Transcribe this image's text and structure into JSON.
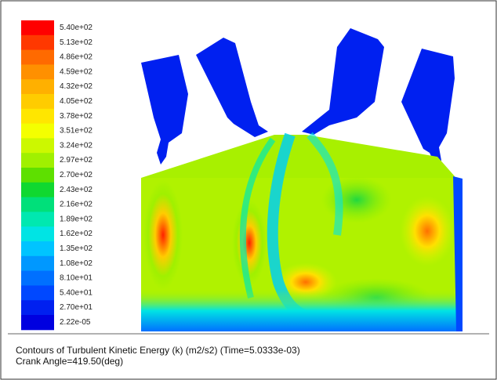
{
  "legend": {
    "levels": [
      {
        "label": "5.40e+02",
        "color": "#ff0000"
      },
      {
        "label": "5.13e+02",
        "color": "#ff3800"
      },
      {
        "label": "4.86e+02",
        "color": "#ff6a00"
      },
      {
        "label": "4.59e+02",
        "color": "#ff9000"
      },
      {
        "label": "4.32e+02",
        "color": "#ffb000"
      },
      {
        "label": "4.05e+02",
        "color": "#ffcc00"
      },
      {
        "label": "3.78e+02",
        "color": "#ffe600"
      },
      {
        "label": "3.51e+02",
        "color": "#f4ff00"
      },
      {
        "label": "3.24e+02",
        "color": "#ccf800"
      },
      {
        "label": "2.97e+02",
        "color": "#a0f000"
      },
      {
        "label": "2.70e+02",
        "color": "#5ee000"
      },
      {
        "label": "2.43e+02",
        "color": "#10d830"
      },
      {
        "label": "2.16e+02",
        "color": "#00e07a"
      },
      {
        "label": "1.89e+02",
        "color": "#00e8b0"
      },
      {
        "label": "1.62e+02",
        "color": "#00e4e4"
      },
      {
        "label": "1.35e+02",
        "color": "#00c4ff"
      },
      {
        "label": "1.08e+02",
        "color": "#0098ff"
      },
      {
        "label": "8.10e+01",
        "color": "#0070ff"
      },
      {
        "label": "5.40e+01",
        "color": "#0048ff"
      },
      {
        "label": "2.70e+01",
        "color": "#0020f0"
      },
      {
        "label": "2.22e-05",
        "color": "#0000e0"
      }
    ]
  },
  "caption": {
    "line1": "Contours of Turbulent Kinetic Energy (k) (m2/s2)  (Time=5.0333e-03)",
    "line2": "Crank Angle=419.50(deg)"
  }
}
